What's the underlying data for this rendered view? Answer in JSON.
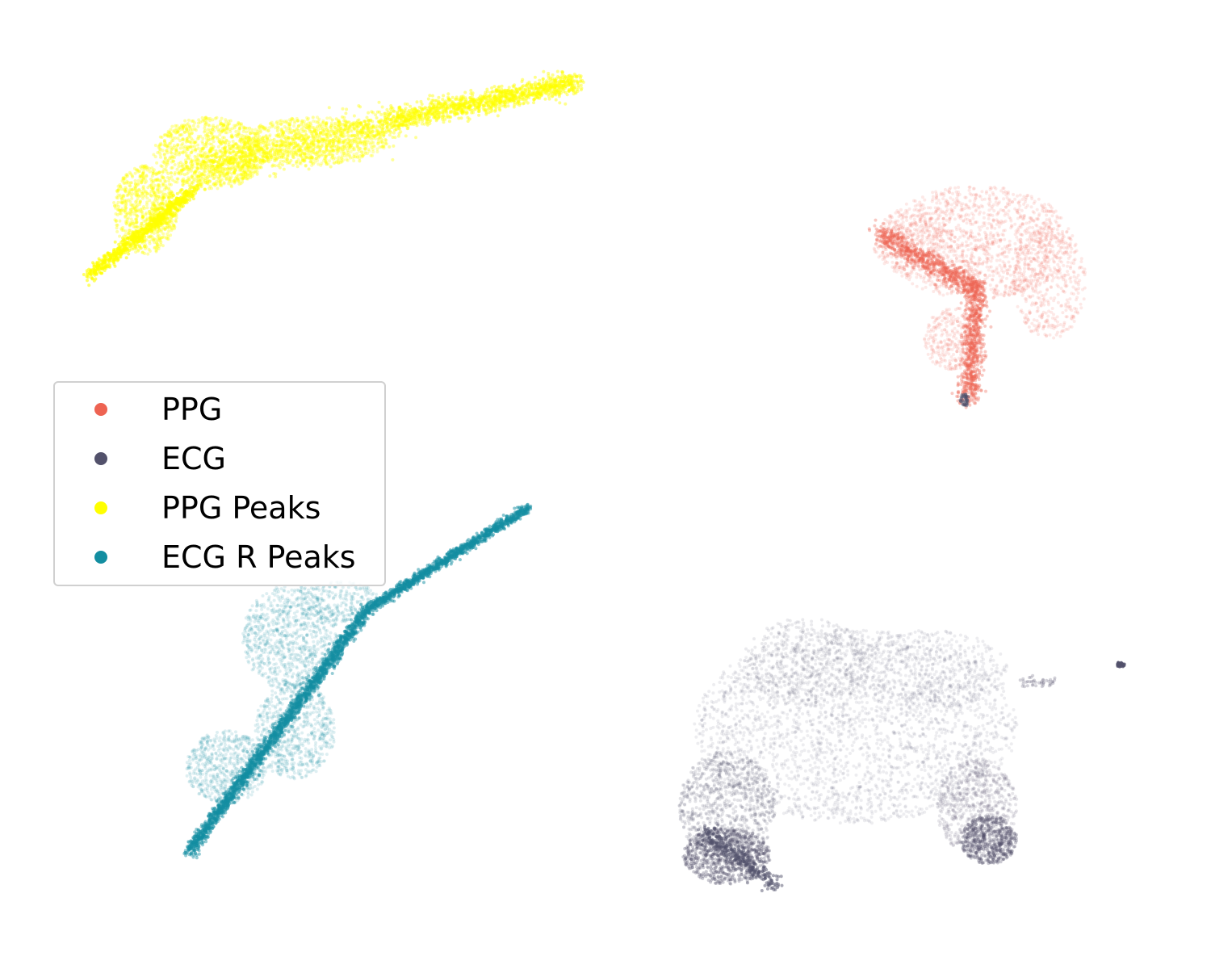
{
  "chart_data": {
    "type": "scatter",
    "title": "",
    "xlabel": "",
    "ylabel": "",
    "axes_visible": false,
    "grid": false,
    "legend_position": "center-left",
    "series": [
      {
        "name": "PPG",
        "color": "#ee6352",
        "cluster": "right-upper"
      },
      {
        "name": "ECG",
        "color": "#52516b",
        "cluster": "right-lower"
      },
      {
        "name": "PPG Peaks",
        "color": "#ffff00",
        "cluster": "left-upper"
      },
      {
        "name": "ECG R Peaks",
        "color": "#138ea1",
        "cluster": "left-lower"
      }
    ]
  }
}
